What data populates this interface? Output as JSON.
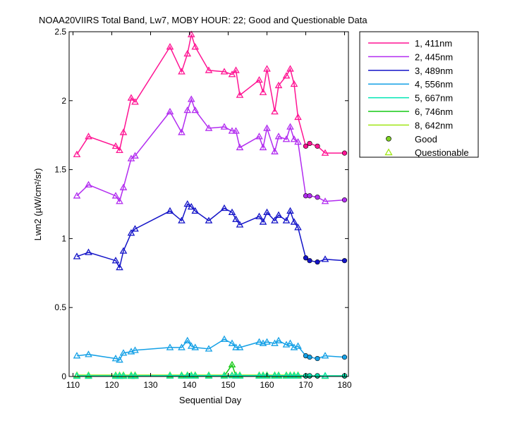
{
  "chart_data": {
    "type": "line",
    "title": "NOAA20VIIRS Total Band, Lw7, MOBY HOUR: 22;  Good and Questionable Data",
    "xlabel": "Sequential Day",
    "ylabel": "Lwn2 (µW/cm²/sr)",
    "xlim": [
      109,
      181
    ],
    "ylim": [
      0,
      2.5
    ],
    "xticks": [
      110,
      120,
      130,
      140,
      150,
      160,
      170,
      180
    ],
    "yticks": [
      0,
      0.5,
      1,
      1.5,
      2,
      2.5
    ],
    "ytick_labels": [
      "0",
      "0.5",
      "1",
      "1.5",
      "2",
      "2.5"
    ],
    "grid": false,
    "legend_position": "outside-top-right",
    "x": [
      111,
      114,
      121,
      122,
      123,
      125,
      126,
      135,
      138,
      139.5,
      140.5,
      141.5,
      145,
      149,
      151,
      152,
      153,
      158,
      159,
      160,
      162,
      163,
      165,
      166,
      167,
      168,
      170,
      171,
      173,
      175,
      180
    ],
    "quality": [
      "Q",
      "Q",
      "Q",
      "Q",
      "Q",
      "Q",
      "Q",
      "Q",
      "Q",
      "Q",
      "Q",
      "Q",
      "Q",
      "Q",
      "Q",
      "Q",
      "Q",
      "Q",
      "Q",
      "Q",
      "Q",
      "Q",
      "Q",
      "Q",
      "Q",
      "Q",
      "G",
      "G",
      "G",
      "Q",
      "G"
    ],
    "series": [
      {
        "name": "1, 411nm",
        "color": "#ff1493",
        "values": [
          1.61,
          1.74,
          1.67,
          1.64,
          1.77,
          2.02,
          1.99,
          2.39,
          2.21,
          2.34,
          2.48,
          2.39,
          2.22,
          2.21,
          2.19,
          2.22,
          2.04,
          2.15,
          2.06,
          2.23,
          1.92,
          2.11,
          2.18,
          2.23,
          2.12,
          1.88,
          1.67,
          1.69,
          1.67,
          1.62,
          1.62
        ]
      },
      {
        "name": "2, 445nm",
        "color": "#b22cf0",
        "values": [
          1.31,
          1.39,
          1.31,
          1.27,
          1.37,
          1.58,
          1.6,
          1.92,
          1.77,
          1.93,
          2.01,
          1.93,
          1.8,
          1.81,
          1.78,
          1.78,
          1.66,
          1.74,
          1.66,
          1.8,
          1.63,
          1.74,
          1.72,
          1.81,
          1.72,
          1.7,
          1.31,
          1.31,
          1.3,
          1.27,
          1.28
        ]
      },
      {
        "name": "3, 489nm",
        "color": "#1414c8",
        "values": [
          0.87,
          0.9,
          0.84,
          0.79,
          0.91,
          1.04,
          1.07,
          1.2,
          1.13,
          1.25,
          1.23,
          1.2,
          1.13,
          1.22,
          1.19,
          1.14,
          1.1,
          1.16,
          1.12,
          1.19,
          1.13,
          1.17,
          1.13,
          1.2,
          1.12,
          1.08,
          0.86,
          0.84,
          0.83,
          0.85,
          0.84
        ]
      },
      {
        "name": "4, 556nm",
        "color": "#14a0e6",
        "values": [
          0.15,
          0.16,
          0.13,
          0.12,
          0.17,
          0.18,
          0.19,
          0.21,
          0.21,
          0.26,
          0.22,
          0.21,
          0.2,
          0.27,
          0.24,
          0.21,
          0.21,
          0.25,
          0.24,
          0.25,
          0.24,
          0.26,
          0.23,
          0.24,
          0.21,
          0.22,
          0.15,
          0.14,
          0.13,
          0.15,
          0.14
        ]
      },
      {
        "name": "5, 667nm",
        "color": "#00e6b4",
        "values": [
          0.005,
          0.005,
          0.005,
          0.005,
          0.005,
          0.005,
          0.005,
          0.006,
          0.006,
          0.006,
          0.006,
          0.006,
          0.006,
          0.006,
          0.006,
          0.006,
          0.006,
          0.006,
          0.006,
          0.006,
          0.006,
          0.006,
          0.006,
          0.006,
          0.006,
          0.006,
          0.005,
          0.005,
          0.005,
          0.005,
          0.005
        ]
      },
      {
        "name": "6, 746nm",
        "color": "#14c814",
        "values": [
          0.003,
          0.003,
          0.003,
          0.003,
          0.003,
          0.003,
          0.003,
          0.004,
          0.004,
          0.004,
          0.004,
          0.004,
          0.004,
          0.004,
          0.085,
          0.004,
          0.004,
          0.004,
          0.004,
          0.004,
          0.004,
          0.004,
          0.004,
          0.004,
          0.004,
          0.004,
          0.003,
          0.003,
          0.003,
          0.003,
          0.003
        ]
      },
      {
        "name": "8, 642nm",
        "color": "#a0e614",
        "values": [
          0.01,
          0.01,
          0.01,
          0.01,
          0.01,
          0.01,
          0.01,
          0.01,
          0.01,
          0.01,
          0.01,
          0.01,
          0.01,
          0.01,
          0.01,
          0.01,
          0.01,
          0.01,
          0.01,
          0.01,
          0.01,
          0.01,
          0.01,
          0.01,
          0.01,
          0.01,
          0.005,
          0.005,
          0.005,
          0.005,
          0.005
        ]
      }
    ],
    "markers": {
      "good": {
        "label": "Good",
        "symbol": "circle",
        "fill": "#7ed321"
      },
      "questionable": {
        "label": "Questionable",
        "symbol": "triangle",
        "color": "#a0e614"
      }
    }
  }
}
